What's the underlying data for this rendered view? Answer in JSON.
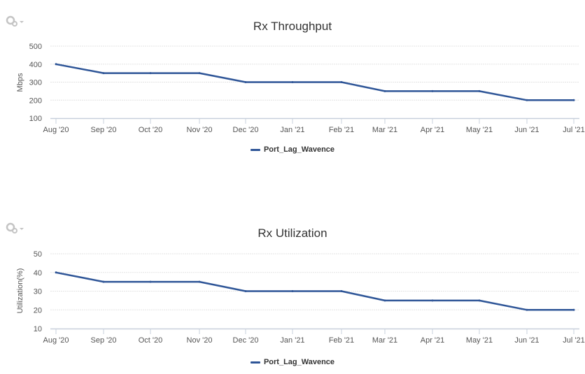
{
  "charts": [
    {
      "title": "Rx Throughput",
      "ylabel": "Mbps",
      "y_ticks": [
        "500",
        "400",
        "300",
        "200",
        "100"
      ],
      "legend": "Port_Lag_Wavence",
      "settings_icon": "gear-icon"
    },
    {
      "title": "Rx Utilization",
      "ylabel": "Utilization(%)",
      "y_ticks": [
        "50",
        "40",
        "30",
        "20",
        "10"
      ],
      "legend": "Port_Lag_Wavence",
      "settings_icon": "gear-icon"
    }
  ],
  "x_labels": [
    "Aug '20",
    "Sep '20",
    "Oct '20",
    "Nov '20",
    "Dec '20",
    "Jan '21",
    "Feb '21",
    "Mar '21",
    "Apr '21",
    "May '21",
    "Jun '21",
    "Jul '21"
  ],
  "colors": {
    "series": "#2e5597",
    "grid": "#e3e3e3",
    "axis": "#c8d0dc",
    "text": "#555555"
  },
  "chart_data": [
    {
      "type": "line",
      "title": "Rx Throughput",
      "xlabel": "",
      "ylabel": "Mbps",
      "ylim": [
        100,
        500
      ],
      "y_ticks": [
        100,
        200,
        300,
        400,
        500
      ],
      "grid": true,
      "legend_position": "bottom",
      "categories": [
        "Aug '20",
        "Sep '20",
        "Oct '20",
        "Nov '20",
        "Dec '20",
        "Jan '21",
        "Feb '21",
        "Mar '21",
        "Apr '21",
        "May '21",
        "Jun '21",
        "Jul '21"
      ],
      "series": [
        {
          "name": "Port_Lag_Wavence",
          "values": [
            400,
            350,
            350,
            350,
            300,
            300,
            300,
            250,
            250,
            250,
            200,
            200
          ]
        }
      ]
    },
    {
      "type": "line",
      "title": "Rx Utilization",
      "xlabel": "",
      "ylabel": "Utilization(%)",
      "ylim": [
        10,
        50
      ],
      "y_ticks": [
        10,
        20,
        30,
        40,
        50
      ],
      "grid": true,
      "legend_position": "bottom",
      "categories": [
        "Aug '20",
        "Sep '20",
        "Oct '20",
        "Nov '20",
        "Dec '20",
        "Jan '21",
        "Feb '21",
        "Mar '21",
        "Apr '21",
        "May '21",
        "Jun '21",
        "Jul '21"
      ],
      "series": [
        {
          "name": "Port_Lag_Wavence",
          "values": [
            40,
            35,
            35,
            35,
            30,
            30,
            30,
            25,
            25,
            25,
            20,
            20
          ]
        }
      ]
    }
  ]
}
